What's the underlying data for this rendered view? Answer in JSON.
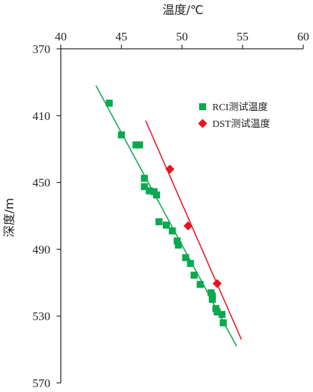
{
  "chart_data": {
    "type": "scatter",
    "xlabel": "温度/℃",
    "ylabel": "深度/m",
    "x_axis_position": "top",
    "y_axis_inverted": true,
    "xlim": [
      40,
      60
    ],
    "ylim": [
      370,
      570
    ],
    "xticks": [
      40,
      45,
      50,
      55,
      60
    ],
    "yticks": [
      370,
      410,
      450,
      490,
      530,
      570
    ],
    "grid": false,
    "legend_position": "top-right",
    "series": [
      {
        "name": "RCI测试温度",
        "marker": "square",
        "color": "#0aa84f",
        "points": [
          [
            44.0,
            402.5
          ],
          [
            45.0,
            421.5
          ],
          [
            46.2,
            427.5
          ],
          [
            46.5,
            427.5
          ],
          [
            46.9,
            447.5
          ],
          [
            46.9,
            452.5
          ],
          [
            47.3,
            455.0
          ],
          [
            47.7,
            455.5
          ],
          [
            47.9,
            457.5
          ],
          [
            48.1,
            473.5
          ],
          [
            48.7,
            475.5
          ],
          [
            49.2,
            479.0
          ],
          [
            49.6,
            485.0
          ],
          [
            49.7,
            487.5
          ],
          [
            50.3,
            495.0
          ],
          [
            50.7,
            498.5
          ],
          [
            51.0,
            505.5
          ],
          [
            51.5,
            511.0
          ],
          [
            52.4,
            516.0
          ],
          [
            52.5,
            518.0
          ],
          [
            52.5,
            520.0
          ],
          [
            52.8,
            525.5
          ],
          [
            52.9,
            527.5
          ],
          [
            53.3,
            529.0
          ],
          [
            53.4,
            534.0
          ]
        ],
        "fit_line": {
          "color": "#0aa84f",
          "from": [
            42.9,
            392.0
          ],
          "to": [
            54.5,
            548.0
          ]
        }
      },
      {
        "name": "DST测试温度",
        "marker": "diamond",
        "color": "#e8141e",
        "points": [
          [
            49.0,
            442.0
          ],
          [
            50.5,
            476.0
          ],
          [
            52.9,
            510.5
          ]
        ],
        "fit_line": {
          "color": "#e8141e",
          "from": [
            47.0,
            413.0
          ],
          "to": [
            54.9,
            544.0
          ]
        }
      }
    ]
  }
}
